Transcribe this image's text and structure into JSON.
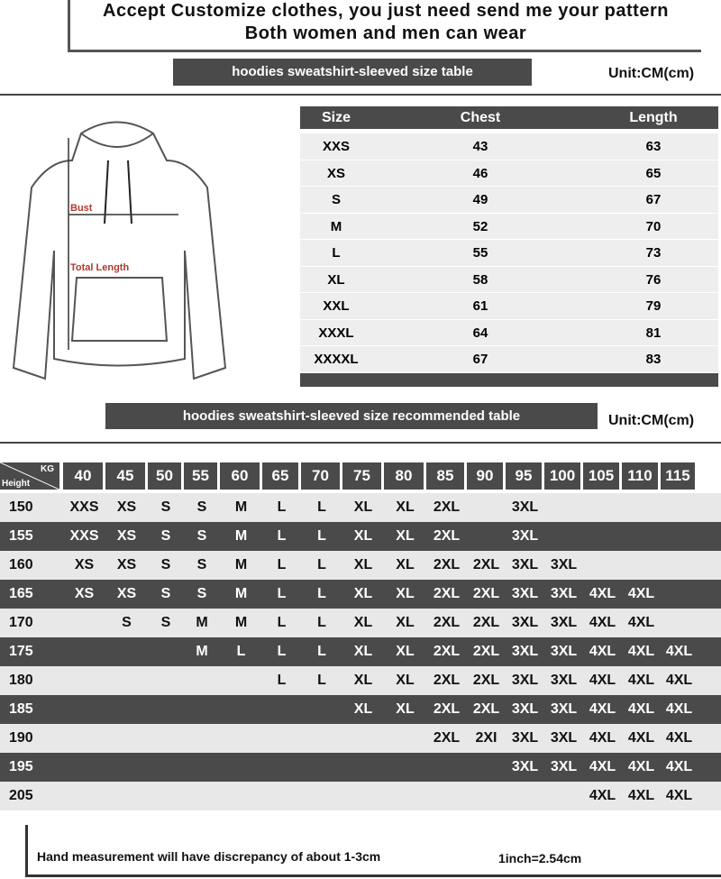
{
  "header": {
    "line1": "Accept Customize clothes, you just need send me your pattern",
    "line2": "Both women and men can wear"
  },
  "size_table": {
    "title": "hoodies sweatshirt-sleeved size  table",
    "unit": "Unit:CM(cm)",
    "columns": [
      "Size",
      "Chest",
      "Length"
    ],
    "rows": [
      [
        "XXS",
        "43",
        "63"
      ],
      [
        "XS",
        "46",
        "65"
      ],
      [
        "S",
        "49",
        "67"
      ],
      [
        "M",
        "52",
        "70"
      ],
      [
        "L",
        "55",
        "73"
      ],
      [
        "XL",
        "58",
        "76"
      ],
      [
        "XXL",
        "61",
        "79"
      ],
      [
        "XXXL",
        "64",
        "81"
      ],
      [
        "XXXXL",
        "67",
        "83"
      ]
    ]
  },
  "diagram": {
    "bust_label": "Bust",
    "length_label": "Total Length",
    "label_color": "#b03a2e"
  },
  "recommend_table": {
    "title": "hoodies sweatshirt-sleeved size recommended table",
    "unit": "Unit:CM(cm)",
    "corner_top": "KG",
    "corner_bottom": "Height",
    "weights": [
      "40",
      "45",
      "50",
      "55",
      "60",
      "65",
      "70",
      "75",
      "80",
      "85",
      "90",
      "95",
      "100",
      "105",
      "110",
      "115"
    ],
    "rows": [
      {
        "height": "150",
        "sizes": [
          "XXS",
          "XS",
          "S",
          "S",
          "M",
          "L",
          "L",
          "XL",
          "XL",
          "2XL",
          "",
          "3XL",
          "",
          "",
          "",
          ""
        ]
      },
      {
        "height": "155",
        "sizes": [
          "XXS",
          "XS",
          "S",
          "S",
          "M",
          "L",
          "L",
          "XL",
          "XL",
          "2XL",
          "",
          "3XL",
          "",
          "",
          "",
          ""
        ]
      },
      {
        "height": "160",
        "sizes": [
          "XS",
          "XS",
          "S",
          "S",
          "M",
          "L",
          "L",
          "XL",
          "XL",
          "2XL",
          "2XL",
          "3XL",
          "3XL",
          "",
          "",
          ""
        ]
      },
      {
        "height": "165",
        "sizes": [
          "XS",
          "XS",
          "S",
          "S",
          "M",
          "L",
          "L",
          "XL",
          "XL",
          "2XL",
          "2XL",
          "3XL",
          "3XL",
          "4XL",
          "4XL",
          ""
        ]
      },
      {
        "height": "170",
        "sizes": [
          "",
          "S",
          "S",
          "M",
          "M",
          "L",
          "L",
          "XL",
          "XL",
          "2XL",
          "2XL",
          "3XL",
          "3XL",
          "4XL",
          "4XL",
          ""
        ]
      },
      {
        "height": "175",
        "sizes": [
          "",
          "",
          "",
          "M",
          "L",
          "L",
          "L",
          "XL",
          "XL",
          "2XL",
          "2XL",
          "3XL",
          "3XL",
          "4XL",
          "4XL",
          "4XL"
        ]
      },
      {
        "height": "180",
        "sizes": [
          "",
          "",
          "",
          "",
          "",
          "L",
          "L",
          "XL",
          "XL",
          "2XL",
          "2XL",
          "3XL",
          "3XL",
          "4XL",
          "4XL",
          "4XL"
        ]
      },
      {
        "height": "185",
        "sizes": [
          "",
          "",
          "",
          "",
          "",
          "",
          "",
          "XL",
          "XL",
          "2XL",
          "2XL",
          "3XL",
          "3XL",
          "4XL",
          "4XL",
          "4XL"
        ]
      },
      {
        "height": "190",
        "sizes": [
          "",
          "",
          "",
          "",
          "",
          "",
          "",
          "",
          "",
          "2XL",
          "2XI",
          "3XL",
          "3XL",
          "4XL",
          "4XL",
          "4XL"
        ]
      },
      {
        "height": "195",
        "sizes": [
          "",
          "",
          "",
          "",
          "",
          "",
          "",
          "",
          "",
          "",
          "",
          "3XL",
          "3XL",
          "4XL",
          "4XL",
          "4XL"
        ]
      },
      {
        "height": "205",
        "sizes": [
          "",
          "",
          "",
          "",
          "",
          "",
          "",
          "",
          "",
          "",
          "",
          "",
          "",
          "4XL",
          "4XL",
          "4XL"
        ]
      }
    ]
  },
  "footer": {
    "note": "Hand measurement will have discrepancy of about  1-3cm",
    "conversion": "1inch=2.54cm"
  }
}
